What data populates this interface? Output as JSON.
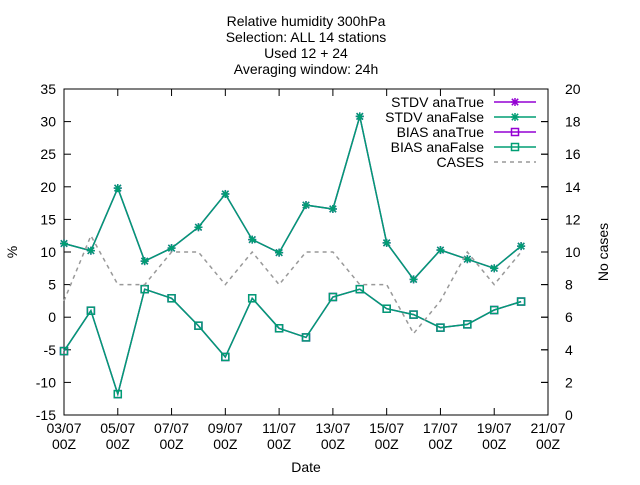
{
  "chart_data": {
    "type": "line",
    "title": [
      "Relative humidity 300hPa",
      "Selection: ALL      14 stations",
      "Used 12 + 24",
      "Averaging window: 24h"
    ],
    "xlabel": "Date",
    "ylabel": "%",
    "y2label": "No cases",
    "ylim": [
      -15,
      35
    ],
    "y2lim": [
      0,
      20
    ],
    "yticks": [
      -15,
      -10,
      -5,
      0,
      5,
      10,
      15,
      20,
      25,
      30,
      35
    ],
    "y2ticks": [
      0,
      2,
      4,
      6,
      8,
      10,
      12,
      14,
      16,
      18,
      20
    ],
    "xlim": [
      0,
      18
    ],
    "xticks": [
      {
        "x": 0,
        "date": "03/07",
        "hour": "00Z"
      },
      {
        "x": 2,
        "date": "05/07",
        "hour": "00Z"
      },
      {
        "x": 4,
        "date": "07/07",
        "hour": "00Z"
      },
      {
        "x": 6,
        "date": "09/07",
        "hour": "00Z"
      },
      {
        "x": 8,
        "date": "11/07",
        "hour": "00Z"
      },
      {
        "x": 10,
        "date": "13/07",
        "hour": "00Z"
      },
      {
        "x": 12,
        "date": "15/07",
        "hour": "00Z"
      },
      {
        "x": 14,
        "date": "17/07",
        "hour": "00Z"
      },
      {
        "x": 16,
        "date": "19/07",
        "hour": "00Z"
      },
      {
        "x": 18,
        "date": "21/07",
        "hour": "00Z"
      }
    ],
    "x": [
      0,
      1,
      2,
      3,
      4,
      5,
      6,
      7,
      8,
      9,
      10,
      11,
      12,
      13,
      14,
      15,
      16,
      17
    ],
    "legend_position": "top-right",
    "series": [
      {
        "name": "STDV anaTrue",
        "axis": "y",
        "color": "#9400d3",
        "marker": "star",
        "values": [
          11.3,
          10.2,
          19.8,
          8.6,
          10.6,
          13.8,
          18.9,
          11.9,
          9.9,
          17.2,
          16.6,
          30.8,
          11.4,
          5.8,
          10.3,
          8.9,
          7.5,
          10.9
        ]
      },
      {
        "name": "STDV anaFalse",
        "axis": "y",
        "color": "#009e73",
        "marker": "star",
        "values": [
          11.3,
          10.2,
          19.8,
          8.6,
          10.6,
          13.8,
          18.9,
          11.9,
          9.9,
          17.2,
          16.6,
          30.8,
          11.4,
          5.8,
          10.3,
          8.9,
          7.5,
          10.9
        ]
      },
      {
        "name": "BIAS anaTrue",
        "axis": "y",
        "color": "#9400d3",
        "marker": "square",
        "values": [
          -5.2,
          1.0,
          -11.8,
          4.3,
          2.9,
          -1.3,
          -6.1,
          2.9,
          -1.7,
          -3.1,
          3.1,
          4.3,
          1.3,
          0.4,
          -1.6,
          -1.1,
          1.1,
          2.4
        ]
      },
      {
        "name": "BIAS anaFalse",
        "axis": "y",
        "color": "#009e73",
        "marker": "square",
        "values": [
          -5.2,
          1.0,
          -11.8,
          4.3,
          2.9,
          -1.3,
          -6.1,
          2.9,
          -1.7,
          -3.1,
          3.1,
          4.3,
          1.3,
          0.4,
          -1.6,
          -1.1,
          1.1,
          2.4
        ]
      },
      {
        "name": "CASES",
        "axis": "y2",
        "color": "#999999",
        "marker": "none",
        "dash": true,
        "values": [
          7,
          11,
          8,
          8,
          10,
          10,
          8,
          10,
          8,
          10,
          10,
          8,
          8,
          5,
          7,
          10,
          8,
          10
        ]
      }
    ]
  }
}
